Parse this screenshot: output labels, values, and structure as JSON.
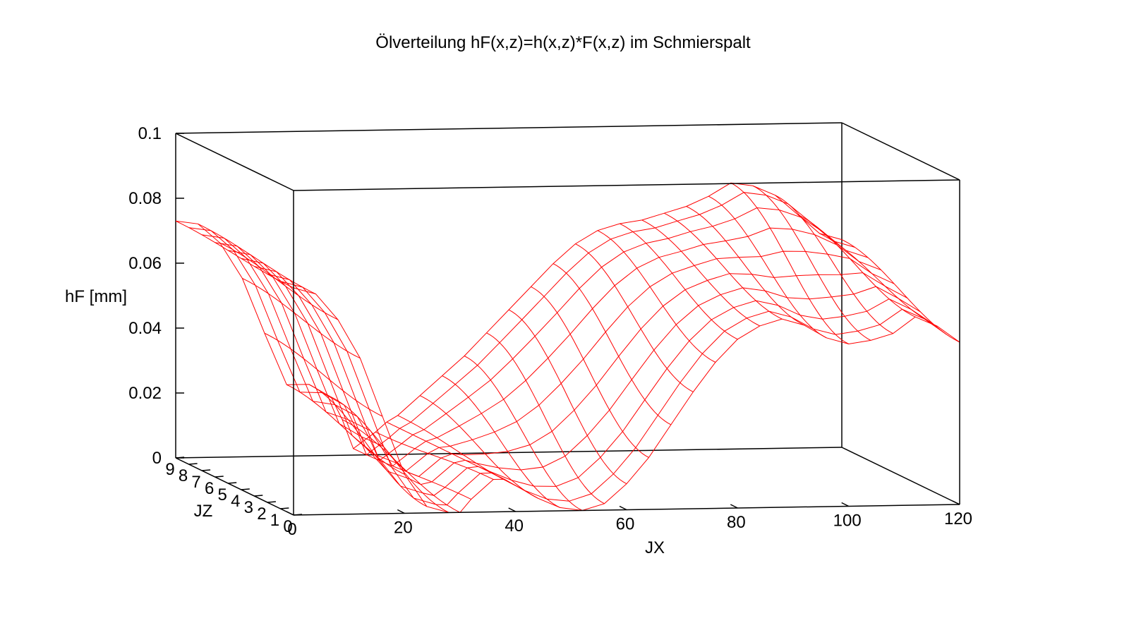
{
  "chart_data": {
    "type": "surface3d",
    "title": "Ölverteilung hF(x,z)=h(x,z)*F(x,z) im Schmierspalt",
    "xlabel": "JX",
    "ylabel": "JZ",
    "zlabel": "hF [mm]",
    "xlim": [
      0,
      120
    ],
    "ylim": [
      0,
      9
    ],
    "zlim": [
      0,
      0.1
    ],
    "x_ticks": [
      "0",
      "20",
      "40",
      "60",
      "80",
      "100",
      "120"
    ],
    "y_ticks": [
      "0",
      "1",
      "2",
      "3",
      "4",
      "5",
      "6",
      "7",
      "8",
      "9"
    ],
    "z_ticks": [
      "0",
      "0.02",
      "0.04",
      "0.06",
      "0.08",
      "0.1"
    ],
    "surface_color": "#ff0000",
    "jx_values": [
      0,
      4,
      8,
      12,
      16,
      20,
      24,
      28,
      30,
      32,
      36,
      38,
      40,
      44,
      48,
      52,
      56,
      60,
      64,
      68,
      72,
      76,
      80,
      84,
      88,
      92,
      96,
      100,
      104,
      108,
      112,
      116,
      120
    ],
    "jz_values": [
      0,
      1,
      2,
      3,
      4,
      5,
      6,
      7,
      8,
      9
    ],
    "profile_front": [
      0.07,
      0.068,
      0.06,
      0.048,
      0.03,
      0.012,
      0.002,
      0.0,
      0.0,
      0.004,
      0.01,
      0.01,
      0.008,
      0.004,
      0.001,
      0.0,
      0.002,
      0.008,
      0.016,
      0.026,
      0.036,
      0.045,
      0.052,
      0.056,
      0.058,
      0.056,
      0.052,
      0.05,
      0.051,
      0.053,
      0.058,
      0.055,
      0.05
    ],
    "profile_back": [
      0.073,
      0.072,
      0.066,
      0.055,
      0.038,
      0.022,
      0.022,
      0.018,
      0.011,
      0.002,
      0.007,
      0.01,
      0.012,
      0.018,
      0.024,
      0.03,
      0.037,
      0.044,
      0.051,
      0.058,
      0.064,
      0.068,
      0.07,
      0.071,
      0.073,
      0.075,
      0.078,
      0.082,
      0.081,
      0.078,
      0.072,
      0.066,
      0.064
    ]
  }
}
